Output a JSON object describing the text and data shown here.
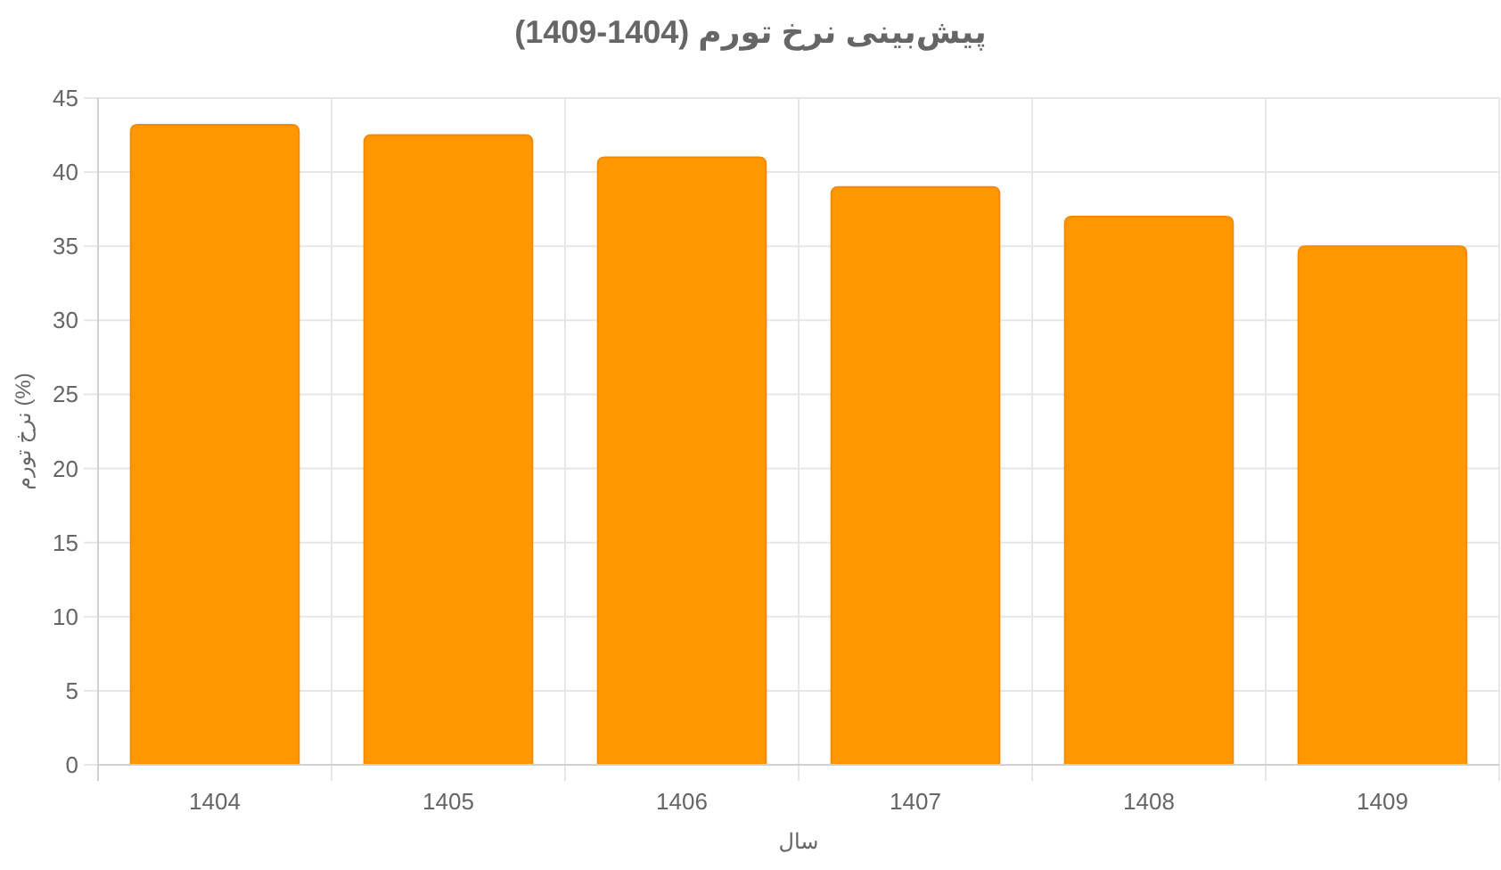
{
  "chart_data": {
    "type": "bar",
    "title": "پیش‌بینی نرخ تورم (1404-1409)",
    "xlabel": "سال",
    "ylabel": "نرخ تورم (%)",
    "categories": [
      "1404",
      "1405",
      "1406",
      "1407",
      "1408",
      "1409"
    ],
    "values": [
      43.2,
      42.5,
      41,
      39,
      37,
      35
    ],
    "color": "#ff9800",
    "ylim": [
      0,
      45
    ],
    "yticks": [
      0,
      5,
      10,
      15,
      20,
      25,
      30,
      35,
      40,
      45
    ],
    "grid": true
  }
}
